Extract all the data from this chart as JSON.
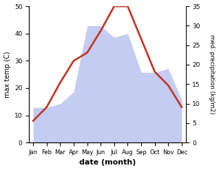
{
  "months": [
    "Jan",
    "Feb",
    "Mar",
    "Apr",
    "May",
    "Jun",
    "Jul",
    "Aug",
    "Sep",
    "Oct",
    "Nov",
    "Dec"
  ],
  "temperature": [
    8,
    13,
    22,
    30,
    33,
    41,
    50,
    50,
    38,
    26,
    21,
    13
  ],
  "precipitation": [
    9,
    9,
    10,
    13,
    30,
    30,
    27,
    28,
    18,
    18,
    19,
    11
  ],
  "temp_color": "#c0392b",
  "precip_color": "#b0bcee",
  "precip_alpha": 0.75,
  "ylim_temp": [
    0,
    50
  ],
  "ylim_precip": [
    0,
    35
  ],
  "ylabel_left": "max temp (C)",
  "ylabel_right": "med. precipitation (kg/m2)",
  "xlabel": "date (month)",
  "temp_linewidth": 2.0,
  "bg_color": "#ffffff"
}
